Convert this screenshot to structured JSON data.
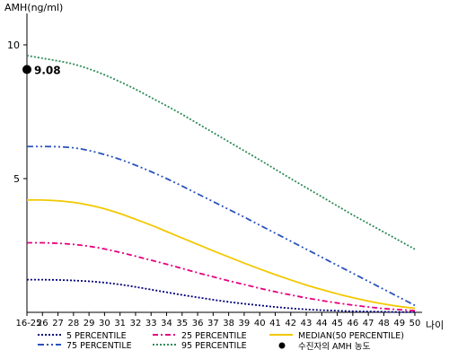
{
  "chart_data": {
    "type": "line",
    "ylabel": "AMH(ng/ml)",
    "xlabel": "나이",
    "ylim": [
      0,
      10.5
    ],
    "yticks": [
      {
        "value": 5,
        "label": "5"
      },
      {
        "value": 10,
        "label": "10"
      }
    ],
    "x": [
      25,
      26,
      27,
      28,
      29,
      30,
      31,
      32,
      33,
      34,
      35,
      36,
      37,
      38,
      39,
      40,
      41,
      42,
      43,
      44,
      45,
      46,
      47,
      48,
      49,
      50
    ],
    "x_tick_labels": [
      "16-25",
      "26",
      "27",
      "28",
      "29",
      "30",
      "31",
      "32",
      "33",
      "34",
      "35",
      "36",
      "37",
      "38",
      "39",
      "40",
      "41",
      "42",
      "43",
      "44",
      "45",
      "46",
      "47",
      "48",
      "49",
      "50"
    ],
    "series": [
      {
        "name": "5 PERCENTILE",
        "color": "#00007a",
        "dash": "2,2",
        "values": [
          1.22,
          1.22,
          1.21,
          1.19,
          1.16,
          1.11,
          1.04,
          0.95,
          0.85,
          0.75,
          0.65,
          0.56,
          0.47,
          0.39,
          0.32,
          0.26,
          0.2,
          0.15,
          0.11,
          0.08,
          0.06,
          0.04,
          0.03,
          0.02,
          0.01,
          0.01
        ]
      },
      {
        "name": "25 PERCENTILE",
        "color": "#e6007e",
        "dash": "6,3,2,3",
        "values": [
          2.6,
          2.6,
          2.58,
          2.54,
          2.47,
          2.37,
          2.24,
          2.1,
          1.95,
          1.8,
          1.64,
          1.48,
          1.33,
          1.18,
          1.04,
          0.9,
          0.77,
          0.65,
          0.54,
          0.44,
          0.35,
          0.27,
          0.2,
          0.14,
          0.1,
          0.06
        ]
      },
      {
        "name": "MEDIAN(50 PERCENTILE)",
        "color": "#f2c800",
        "dash": "",
        "values": [
          4.2,
          4.2,
          4.17,
          4.11,
          4.01,
          3.87,
          3.69,
          3.48,
          3.26,
          3.02,
          2.78,
          2.54,
          2.3,
          2.07,
          1.84,
          1.62,
          1.41,
          1.21,
          1.02,
          0.85,
          0.69,
          0.55,
          0.42,
          0.31,
          0.22,
          0.15
        ]
      },
      {
        "name": "75 PERCENTILE",
        "color": "#2a52be",
        "dash": "7,3,2,3,2,3",
        "values": [
          6.2,
          6.2,
          6.19,
          6.15,
          6.05,
          5.9,
          5.72,
          5.5,
          5.26,
          5.0,
          4.72,
          4.43,
          4.14,
          3.85,
          3.56,
          3.26,
          2.96,
          2.66,
          2.36,
          2.06,
          1.76,
          1.46,
          1.16,
          0.86,
          0.56,
          0.26
        ]
      },
      {
        "name": "95 PERCENTILE",
        "color": "#2e8b57",
        "dash": "2,2",
        "values": [
          9.6,
          9.5,
          9.4,
          9.28,
          9.1,
          8.88,
          8.62,
          8.34,
          8.03,
          7.72,
          7.4,
          7.06,
          6.72,
          6.38,
          6.04,
          5.7,
          5.35,
          5.0,
          4.66,
          4.32,
          3.98,
          3.64,
          3.32,
          3.0,
          2.68,
          2.36
        ]
      }
    ],
    "marker": {
      "name": "수진자의 AMH 농도",
      "x": 25,
      "y": 9.08,
      "label": "9.08",
      "color": "#000000"
    },
    "legend_position": "bottom",
    "grid": false
  }
}
